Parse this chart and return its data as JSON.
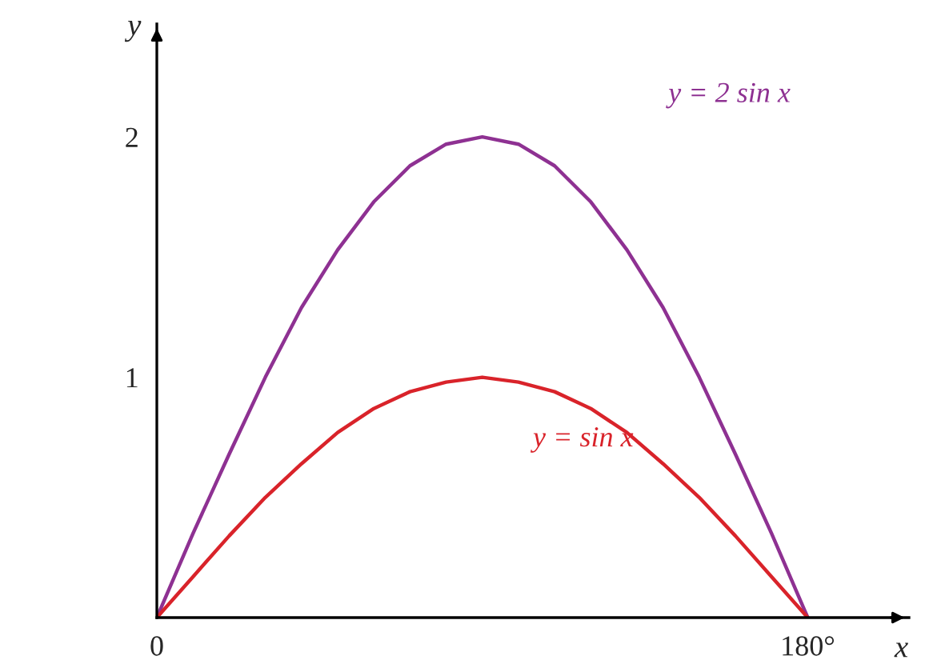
{
  "chart_data": {
    "type": "line",
    "xlabel": "x",
    "ylabel": "y",
    "x": [
      0,
      10,
      20,
      30,
      40,
      50,
      60,
      70,
      80,
      90,
      100,
      110,
      120,
      130,
      140,
      150,
      160,
      170,
      180
    ],
    "series": [
      {
        "name": "y = 2 sin x",
        "color": "#8e3192",
        "values": [
          0,
          0.35,
          0.68,
          1.0,
          1.29,
          1.53,
          1.73,
          1.88,
          1.97,
          2.0,
          1.97,
          1.88,
          1.73,
          1.53,
          1.29,
          1.0,
          0.68,
          0.35,
          0
        ]
      },
      {
        "name": "y = sin x",
        "color": "#d9232a",
        "values": [
          0,
          0.17,
          0.34,
          0.5,
          0.64,
          0.77,
          0.87,
          0.94,
          0.98,
          1.0,
          0.98,
          0.94,
          0.87,
          0.77,
          0.64,
          0.5,
          0.34,
          0.17,
          0
        ]
      }
    ],
    "xlim": [
      0,
      208
    ],
    "ylim": [
      0,
      2.47
    ],
    "xticks": [
      0,
      {
        "value": 180,
        "label": "180°"
      }
    ],
    "yticks": [
      1,
      2
    ],
    "grid": false,
    "legend": false,
    "marker": "none",
    "line_style": "solid"
  }
}
